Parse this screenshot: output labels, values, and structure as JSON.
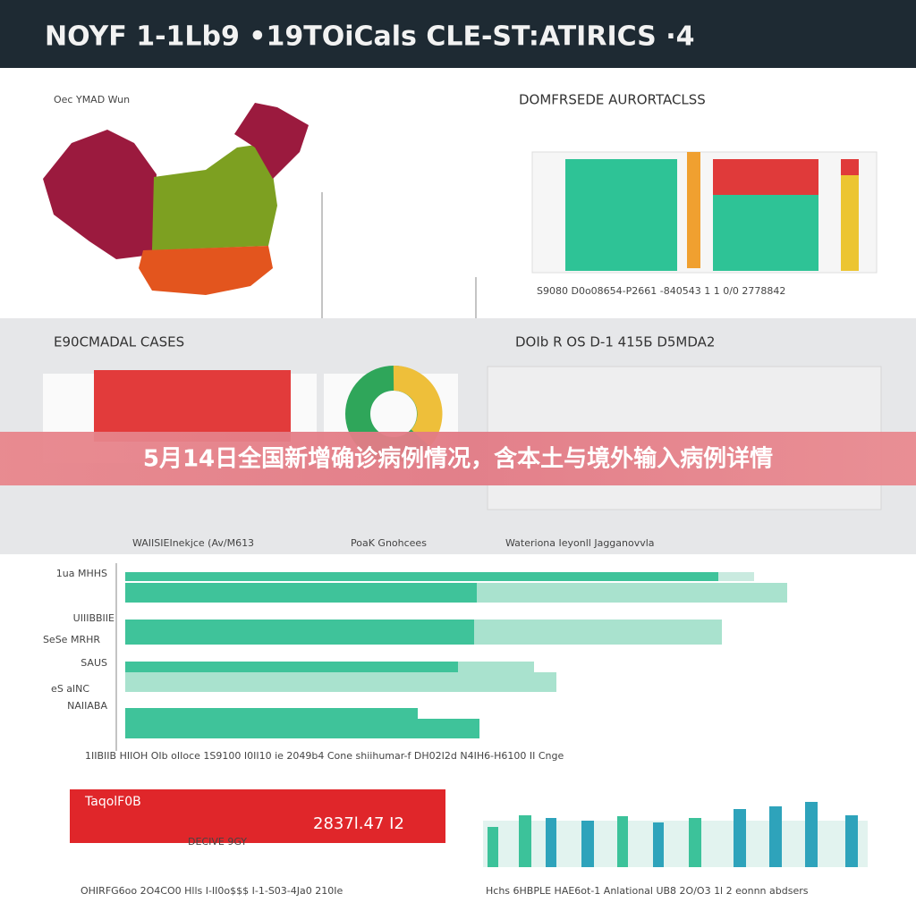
{
  "header": {
    "title": "NOYF 1-1Lb9 •19TOiCals CLE-ST:ATIRICS ·4"
  },
  "map": {
    "title": "Oec YMAD Wun"
  },
  "top_chart": {
    "title": "DOMFRSEDE AURORTACLSS",
    "caption": "S9080 D0o08654-P2661 -840543 1 1 0/0 2778842"
  },
  "cases": {
    "title": "E90CMADAL CASES"
  },
  "trend": {
    "title": "DOIb R OS D-1 415Б D5MDA2"
  },
  "banner": {
    "text": "5月14日全国新增确诊病例情况，含本土与境外输入病例详情"
  },
  "bars": {
    "titles": [
      "WAIISIEInekjce (Av/M613",
      "PoaK Gnohcees",
      "Wateriona Ieyonll Jagganovvla"
    ],
    "labels": [
      "1ua MHHS",
      "UIIIBBIIE",
      "SeSe MRHR",
      "SAUS",
      "eS alNC",
      "NAIIABA"
    ],
    "caption": "1IIBIIB HIIOH OIb oIIoce 1S9100 I0II10 ie 2049b4 Cone shiihumar-f DH02I2d N4IH6-H6100 II Cnge"
  },
  "bottom_left": {
    "label": "TaqolF0B",
    "value": "2837l.47 I2",
    "sub": "DECIVE 9GY",
    "caption": "OHIRFG6oo 2O4CO0 Hlls I-II0o$$$ I-1-S03-4Ja0 210Ie"
  },
  "bottom_right": {
    "caption": "Hchs 6HBPLE HAE6ot-1 Anlational UB8 2O/O3 1l 2 eonnn abdsers"
  }
}
